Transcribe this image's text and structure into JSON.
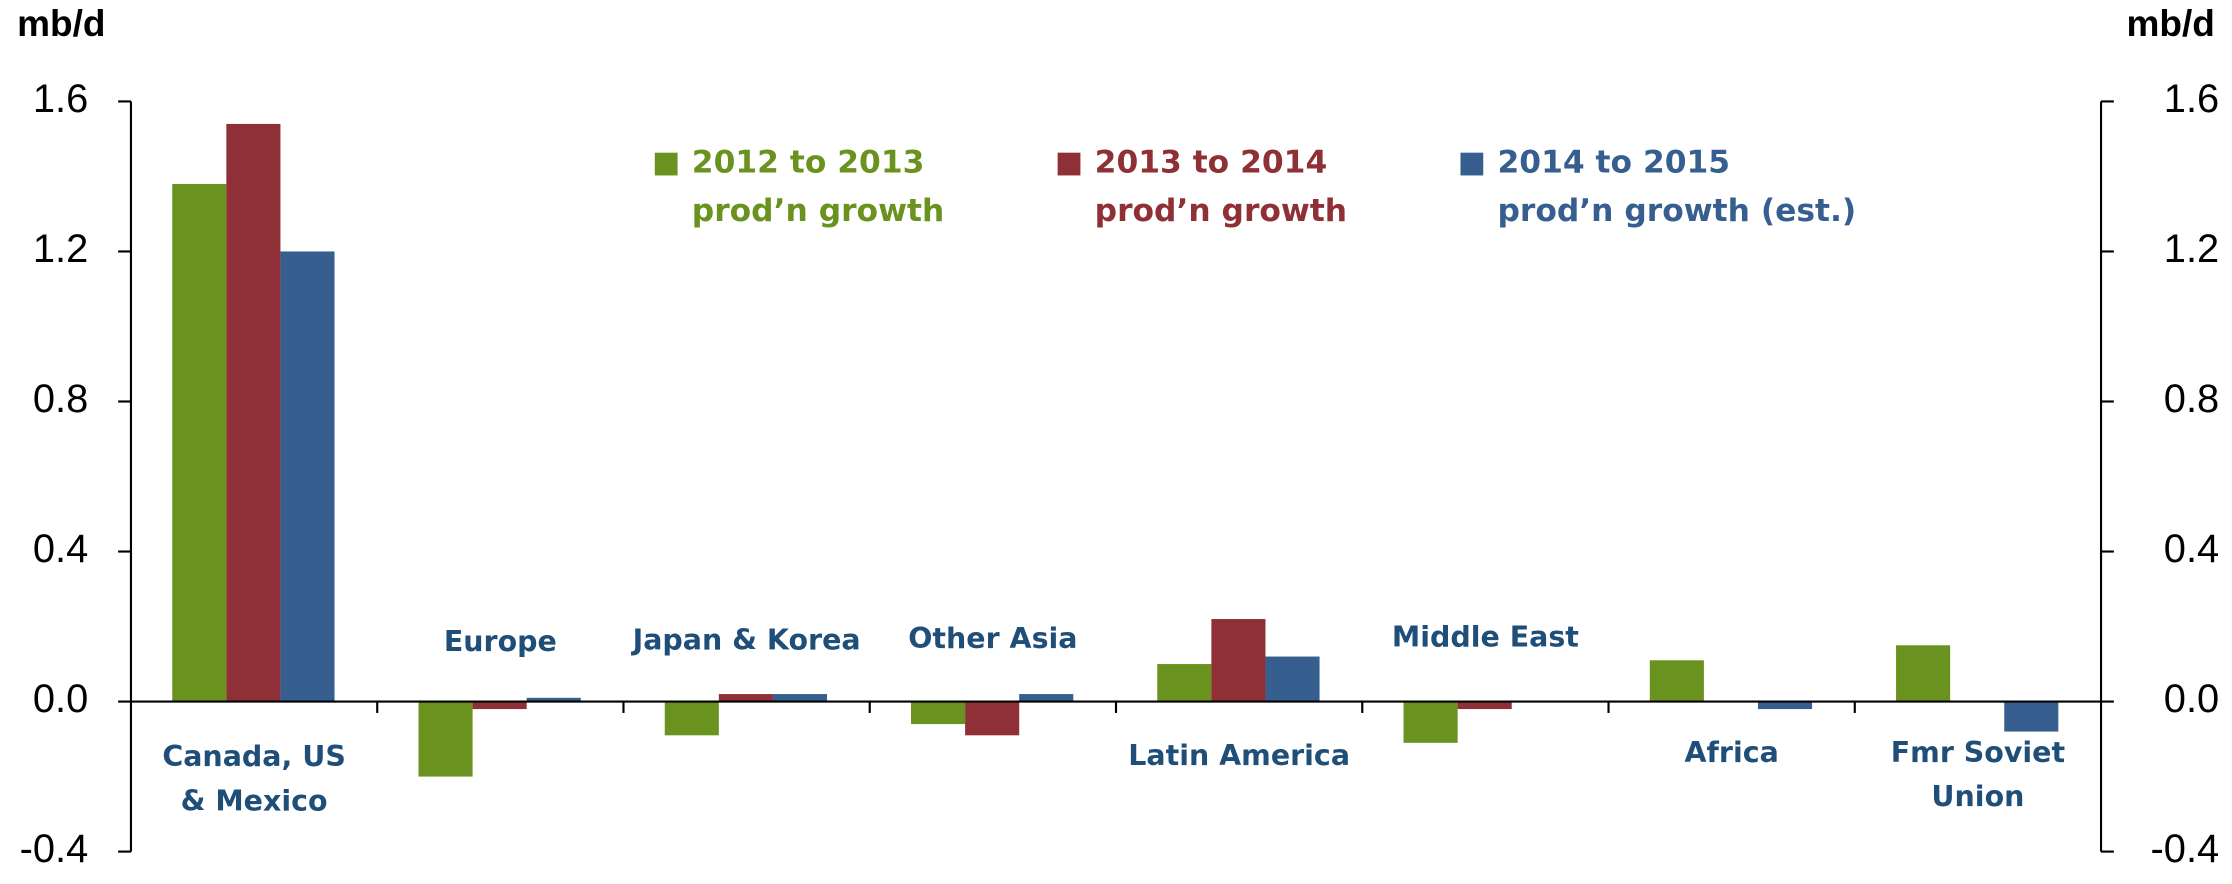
{
  "chart_data": {
    "type": "bar",
    "y_label": "mb/d",
    "y2_label": "mb/d",
    "categories": [
      "Canada, US\n& Mexico",
      "Europe",
      "Japan & Korea",
      "Other Asia",
      "Latin America",
      "Middle East",
      "Africa",
      "Fmr Soviet\nUnion"
    ],
    "series": [
      {
        "name": "2012 to 2013\nprod’n growth",
        "color": "#6a921f",
        "values": [
          1.38,
          -0.2,
          -0.09,
          -0.06,
          0.1,
          -0.11,
          0.11,
          0.15
        ]
      },
      {
        "name": "2013 to 2014\nprod’n growth",
        "color": "#8e3035",
        "values": [
          1.54,
          -0.02,
          0.02,
          -0.09,
          0.22,
          -0.02,
          0.0,
          0.0
        ]
      },
      {
        "name": "2014 to 2015\nprod’n growth (est.)",
        "color": "#365f8f",
        "values": [
          1.2,
          0.01,
          0.02,
          0.02,
          0.12,
          0.0,
          -0.02,
          -0.08
        ]
      }
    ],
    "ylim": [
      -0.4,
      1.6
    ],
    "yticks": [
      {
        "value": -0.4,
        "label": "-0.4"
      },
      {
        "value": 0,
        "label": "0.0"
      },
      {
        "value": 0.4,
        "label": "0.4"
      },
      {
        "value": 0.8,
        "label": "0.8"
      },
      {
        "value": 1.2,
        "label": "1.2"
      },
      {
        "value": 1.6,
        "label": "1.6"
      }
    ],
    "y2lim": [
      -0.4,
      1.6
    ],
    "y2ticks": [
      {
        "value": -0.4,
        "label": "-0.4"
      },
      {
        "value": 0,
        "label": "0.0"
      },
      {
        "value": 0.4,
        "label": "0.4"
      },
      {
        "value": 0.8,
        "label": "0.8"
      },
      {
        "value": 1.2,
        "label": "1.2"
      },
      {
        "value": 1.6,
        "label": "1.6"
      }
    ]
  }
}
